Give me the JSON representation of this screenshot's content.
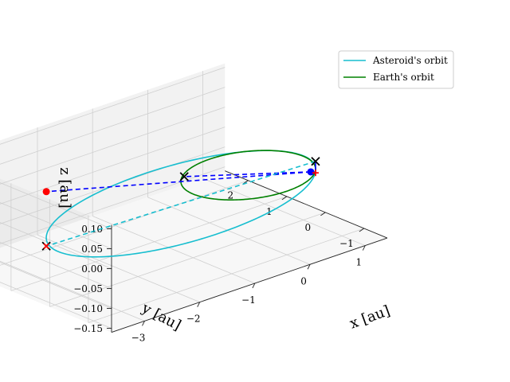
{
  "chart_data": {
    "type": "line",
    "projection": "3d",
    "title": "",
    "xlabel": "x [au]",
    "ylabel": "y [au]",
    "zlabel": "z [au]",
    "xticks": [
      "−3",
      "−2",
      "−1",
      "0",
      "1"
    ],
    "yticks": [
      "−1",
      "0",
      "1",
      "2"
    ],
    "zticks": [
      "−0.15",
      "−0.10",
      "−0.05",
      "0.00",
      "0.05",
      "0.10"
    ],
    "xlim": [
      -3.6,
      1.4
    ],
    "ylim": [
      -1.6,
      2.6
    ],
    "zlim": [
      -0.16,
      0.11
    ],
    "grid": true,
    "legend_position": "top-right",
    "series": [
      {
        "name": "Asteroid's orbit",
        "color": "#17becf",
        "kind": "ellipse",
        "semi_major_au": 2.0,
        "eccentricity": 0.5,
        "perihelion_direction": [
          0.8,
          -0.6,
          0.0
        ],
        "tilt_direction": [
          0.0,
          0.0,
          1.0
        ],
        "inclination_deg": 3.5
      },
      {
        "name": "Earth's orbit",
        "color": "#008000",
        "kind": "circle",
        "radius_au": 1.0,
        "inclination_deg": 0
      }
    ],
    "markers": [
      {
        "label": "blue dot",
        "color": "#0000ff",
        "shape": "dot",
        "pos": [
          0.7,
          -0.62,
          0.0
        ]
      },
      {
        "label": "red dot",
        "color": "#ff0000",
        "shape": "dot",
        "pos": [
          -2.4,
          1.8,
          0.0
        ]
      },
      {
        "label": "red plus",
        "color": "#ff0000",
        "shape": "plus",
        "pos": [
          0.8,
          -0.6,
          -0.008
        ]
      },
      {
        "label": "black x near perihelion",
        "color": "#000000",
        "shape": "x",
        "pos": [
          0.8,
          -0.6,
          0.021
        ]
      },
      {
        "label": "black x at aphelion",
        "color": "#000000",
        "shape": "x",
        "pos": [
          -2.4,
          1.8,
          -0.137
        ]
      },
      {
        "label": "black x on Earth orbit",
        "color": "#000000",
        "shape": "x",
        "pos": [
          -0.67,
          0.7,
          0.0
        ]
      },
      {
        "label": "red x at aphelion",
        "color": "#ff0000",
        "shape": "x",
        "pos": [
          -2.4,
          1.8,
          -0.137
        ]
      }
    ],
    "lines": [
      {
        "style": "dashed",
        "color": "#0000ff",
        "from": [
          0.7,
          -0.62,
          0.0
        ],
        "to": [
          -2.4,
          1.8,
          0.0
        ]
      },
      {
        "style": "dashed",
        "color": "#0000ff",
        "from": [
          0.7,
          -0.62,
          0.0
        ],
        "to": [
          -0.67,
          0.7,
          0.0
        ]
      },
      {
        "style": "dashed",
        "color": "#17becf",
        "from": [
          0.8,
          -0.6,
          0.021
        ],
        "to": [
          -2.4,
          1.8,
          -0.137
        ]
      },
      {
        "style": "solid",
        "color": "#0000ff",
        "from": [
          0.8,
          -0.6,
          0.021
        ],
        "to": [
          0.8,
          -0.6,
          -0.008
        ]
      }
    ]
  }
}
